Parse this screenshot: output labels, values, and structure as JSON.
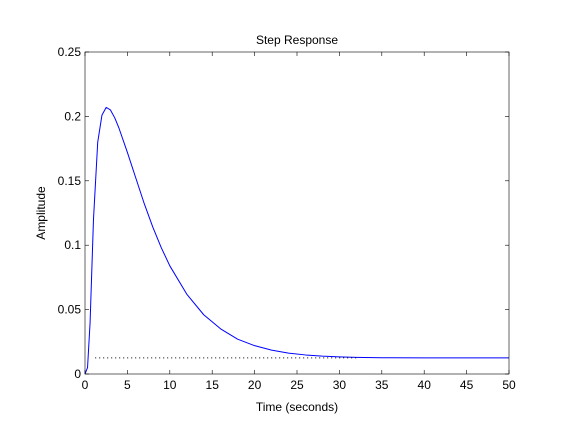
{
  "chart_data": {
    "type": "line",
    "title": "Step Response",
    "xlabel": "Time (seconds)",
    "ylabel": "Amplitude",
    "xlim": [
      0,
      50
    ],
    "ylim": [
      0,
      0.25
    ],
    "xticks": [
      0,
      5,
      10,
      15,
      20,
      25,
      30,
      35,
      40,
      45,
      50
    ],
    "xtick_labels": [
      "0",
      "5",
      "10",
      "15",
      "20",
      "25",
      "30",
      "35",
      "40",
      "45",
      "50"
    ],
    "yticks": [
      0,
      0.05,
      0.1,
      0.15,
      0.2,
      0.25
    ],
    "ytick_labels": [
      "0",
      "0.05",
      "0.1",
      "0.15",
      "0.2",
      "0.25"
    ],
    "grid": false,
    "legend": "none",
    "colors": {
      "response": "#0000ff",
      "steady_state": "#000000",
      "axes": "#000000"
    },
    "series": [
      {
        "style": "solid",
        "x": [
          0,
          0.3,
          0.6,
          1.0,
          1.5,
          2.0,
          2.5,
          3.0,
          3.5,
          4.0,
          5.0,
          6.0,
          7.0,
          8.0,
          9.0,
          10.0,
          12.0,
          14.0,
          16.0,
          18.0,
          20.0,
          22.0,
          24.0,
          26.0,
          28.0,
          30.0,
          32.0,
          34.0,
          36.0,
          40.0,
          45.0,
          50.0
        ],
        "y": [
          0,
          0.005,
          0.04,
          0.12,
          0.18,
          0.201,
          0.207,
          0.205,
          0.199,
          0.191,
          0.172,
          0.152,
          0.132,
          0.114,
          0.098,
          0.084,
          0.062,
          0.046,
          0.035,
          0.027,
          0.022,
          0.0185,
          0.0162,
          0.0148,
          0.0139,
          0.0133,
          0.0129,
          0.0127,
          0.0126,
          0.0125,
          0.0125,
          0.0125
        ]
      },
      {
        "style": "dotted",
        "x": [
          1.2,
          32.0
        ],
        "y": [
          0.0125,
          0.0125
        ]
      }
    ]
  }
}
